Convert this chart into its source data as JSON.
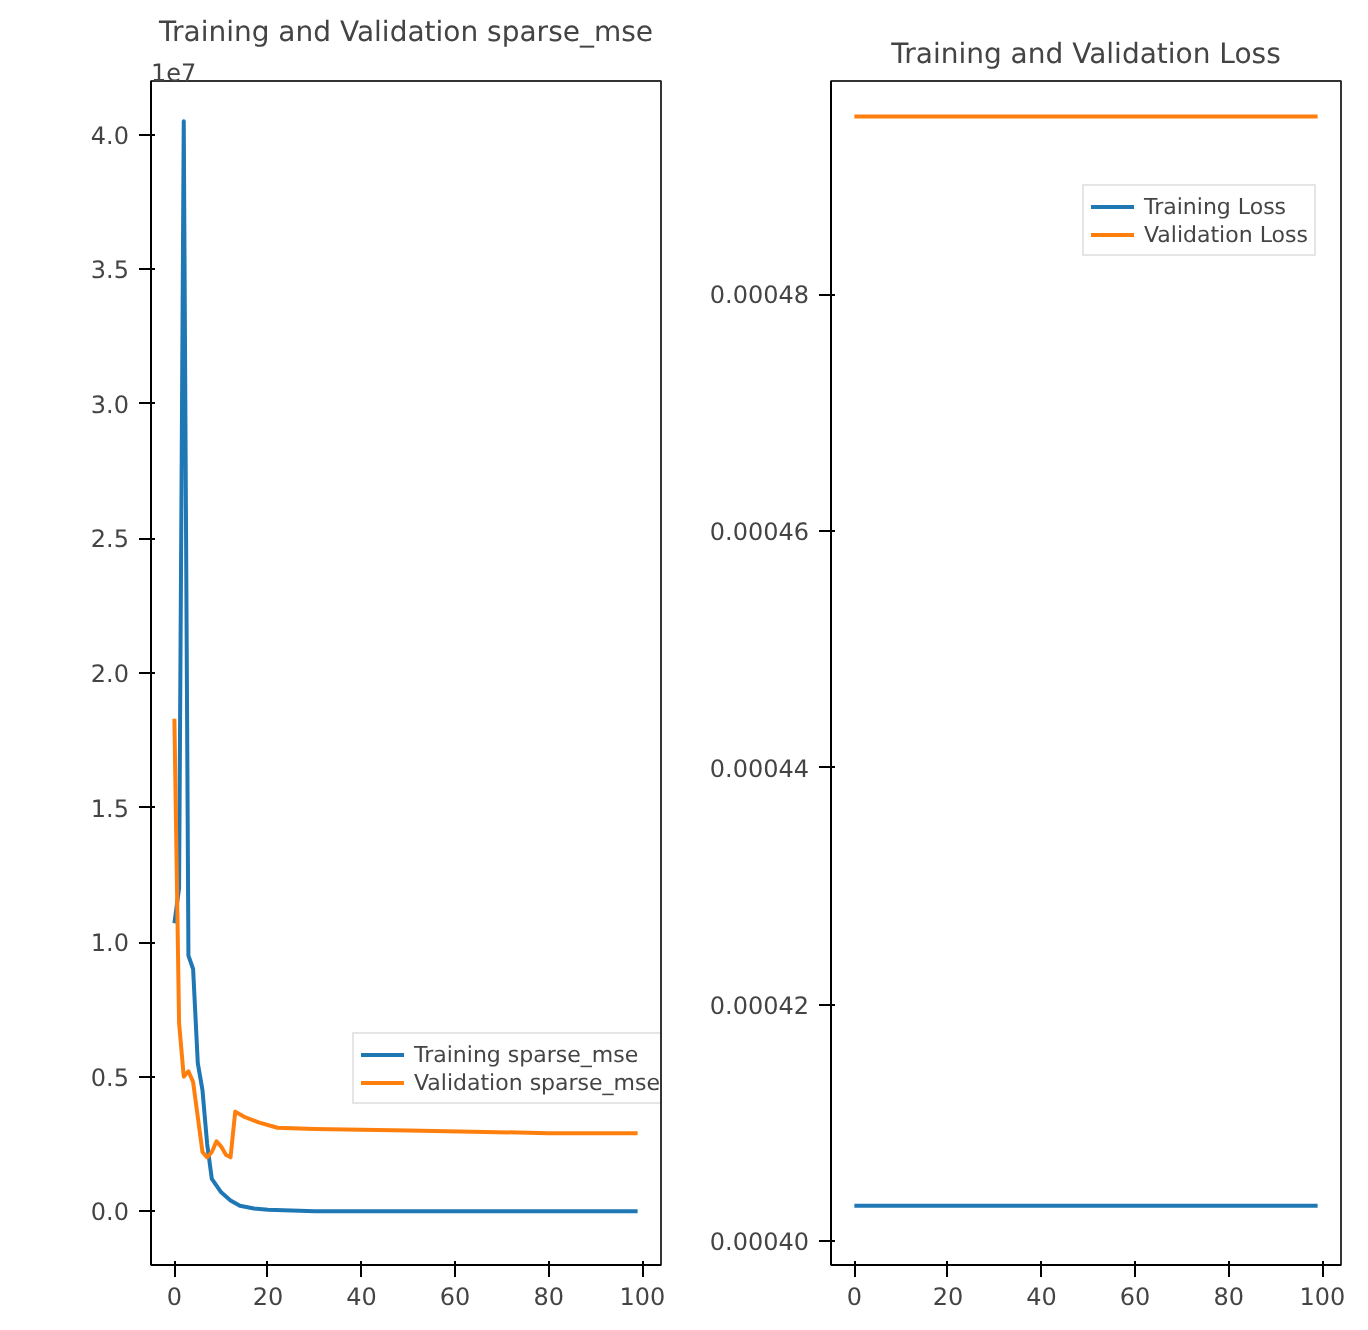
{
  "chart_data": [
    {
      "type": "line",
      "title": "Training and Validation sparse_mse",
      "xlim": [
        -5,
        104
      ],
      "ylim": [
        -0.2,
        4.2
      ],
      "xticks": [
        0,
        20,
        40,
        60,
        80,
        100
      ],
      "yticks": [
        {
          "value": 0,
          "label": "0.0"
        },
        {
          "value": 0.5,
          "label": "0.5"
        },
        {
          "value": 1,
          "label": "1.0"
        },
        {
          "value": 1.5,
          "label": "1.5"
        },
        {
          "value": 2,
          "label": "2.0"
        },
        {
          "value": 2.5,
          "label": "2.5"
        },
        {
          "value": 3,
          "label": "3.0"
        },
        {
          "value": 3.5,
          "label": "3.5"
        },
        {
          "value": 4,
          "label": "4.0"
        }
      ],
      "grid": false,
      "legend": "bottom right",
      "annotations": [
        "1e7"
      ],
      "series": [
        {
          "name": "Training sparse_mse",
          "color": "#1f77b4",
          "x": [
            0,
            1,
            2,
            3,
            4,
            5,
            6,
            7,
            8,
            10,
            12,
            14,
            17,
            20,
            30,
            50,
            70,
            99
          ],
          "values": [
            1.07,
            1.2,
            4.05,
            0.95,
            0.9,
            0.55,
            0.45,
            0.25,
            0.12,
            0.07,
            0.04,
            0.02,
            0.01,
            0.005,
            0,
            0,
            0,
            0
          ]
        },
        {
          "name": "Validation sparse_mse",
          "color": "#ff7f0e",
          "x": [
            0,
            1,
            2,
            3,
            4,
            5,
            6,
            7,
            8,
            9,
            10,
            11,
            12,
            13,
            15,
            18,
            22,
            30,
            50,
            80,
            99
          ],
          "values": [
            1.83,
            0.7,
            0.5,
            0.52,
            0.48,
            0.35,
            0.22,
            0.2,
            0.22,
            0.26,
            0.24,
            0.21,
            0.2,
            0.37,
            0.35,
            0.33,
            0.31,
            0.305,
            0.3,
            0.29,
            0.29
          ]
        }
      ]
    },
    {
      "type": "line",
      "title": "Training and Validation Loss",
      "xlim": [
        -5,
        104
      ],
      "ylim": [
        0.000398,
        0.000498
      ],
      "xticks": [
        0,
        20,
        40,
        60,
        80,
        100
      ],
      "yticks": [
        {
          "value": 0.0004,
          "label": "0.00040"
        },
        {
          "value": 0.00042,
          "label": "0.00042"
        },
        {
          "value": 0.00044,
          "label": "0.00044"
        },
        {
          "value": 0.00046,
          "label": "0.00046"
        },
        {
          "value": 0.00048,
          "label": "0.00048"
        }
      ],
      "grid": false,
      "legend": "top right",
      "series": [
        {
          "name": "Training Loss",
          "color": "#1f77b4",
          "x": [
            0,
            99
          ],
          "values": [
            0.000403,
            0.000403
          ]
        },
        {
          "name": "Validation Loss",
          "color": "#ff7f0e",
          "x": [
            0,
            99
          ],
          "values": [
            0.000495,
            0.000495
          ]
        }
      ]
    }
  ]
}
